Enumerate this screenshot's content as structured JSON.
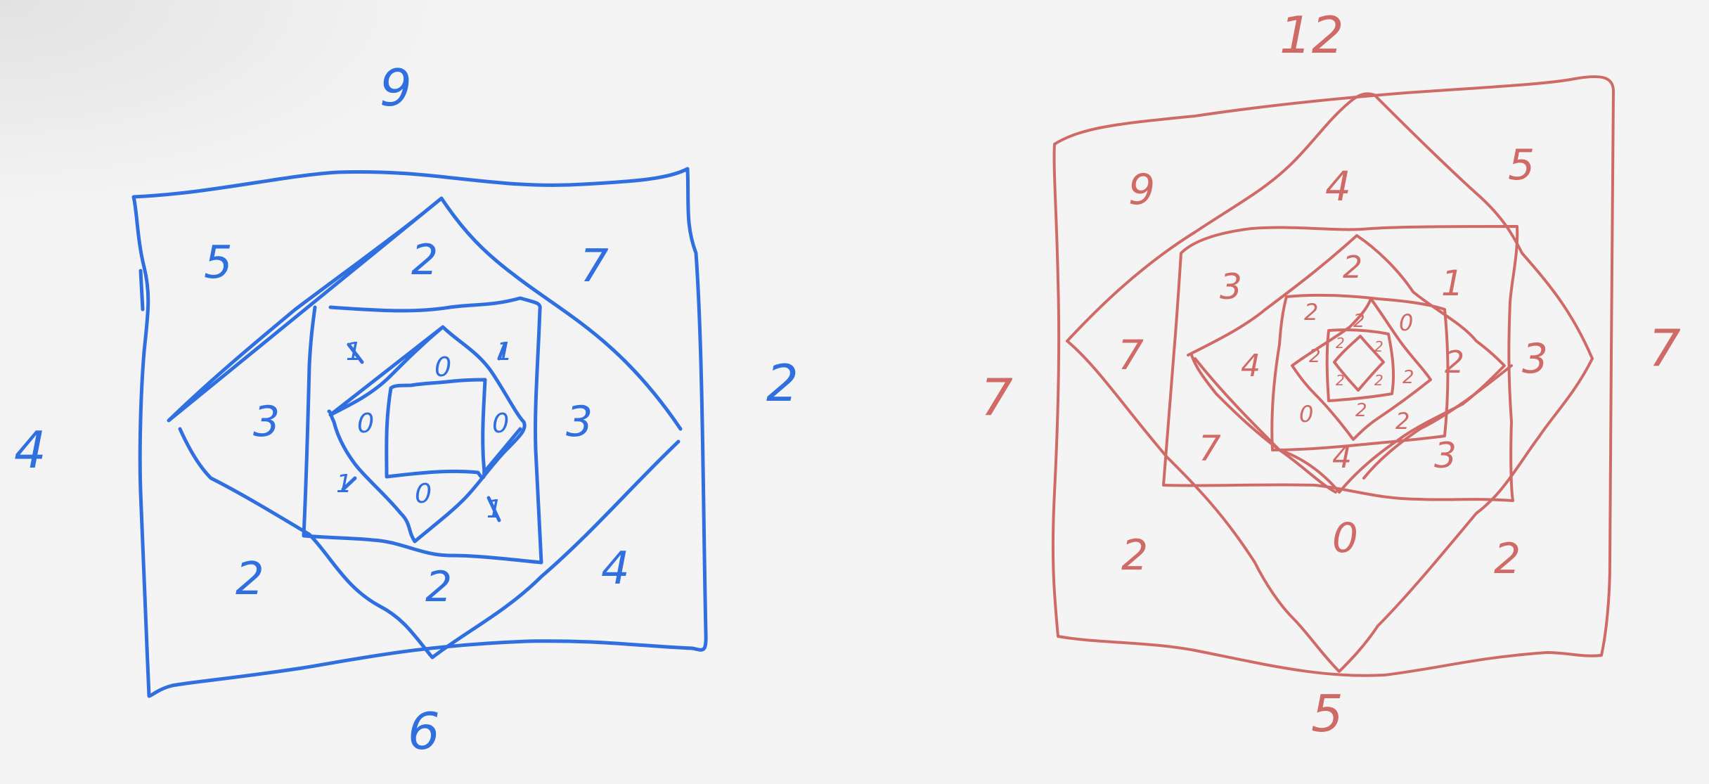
{
  "colors": {
    "blue": "#2f6fe0",
    "red": "#d06a66",
    "background": "#f4f4f4"
  },
  "blue_figure": {
    "outer_labels": {
      "top": "9",
      "left": "4",
      "right": "2",
      "bottom": "6"
    },
    "ring1_labels": {
      "top_left": "5",
      "top_right": "7",
      "bottom_left": "2",
      "bottom_right": "4"
    },
    "ring2_labels": {
      "top": "2",
      "left": "3",
      "right": "3",
      "bottom": "2"
    },
    "ring3_labels": {
      "top_left": "1",
      "top_right": "1",
      "bottom_left": "1",
      "bottom_right": "1"
    },
    "ring4_labels": {
      "top": "0",
      "left": "0",
      "right": "0",
      "bottom": "0"
    }
  },
  "red_figure": {
    "outer_labels": {
      "top": "12",
      "left": "7",
      "right": "7",
      "bottom": "5"
    },
    "ring1_labels": {
      "top_left": "9",
      "top_right": "5",
      "bottom_left": "2",
      "bottom_right": "2"
    },
    "ring2_labels": {
      "top": "4",
      "left": "7",
      "right": "3",
      "bottom": "0"
    },
    "ring3_labels": {
      "top_left": "3",
      "top_right": "1",
      "bottom_left": "7",
      "bottom_right": "3"
    },
    "ring4_labels": {
      "top": "2",
      "left": "4",
      "right": "2",
      "bottom": "4"
    },
    "ring5_labels": {
      "top_left": "2",
      "top_right": "0",
      "bottom_left": "0",
      "bottom_right": "2"
    },
    "ring6_labels": {
      "top": "2",
      "left": "2",
      "right": "2",
      "bottom": "2"
    },
    "ring7_labels": {
      "top_left": "2",
      "top_right": "2",
      "bottom_left": "2",
      "bottom_right": "2"
    }
  }
}
